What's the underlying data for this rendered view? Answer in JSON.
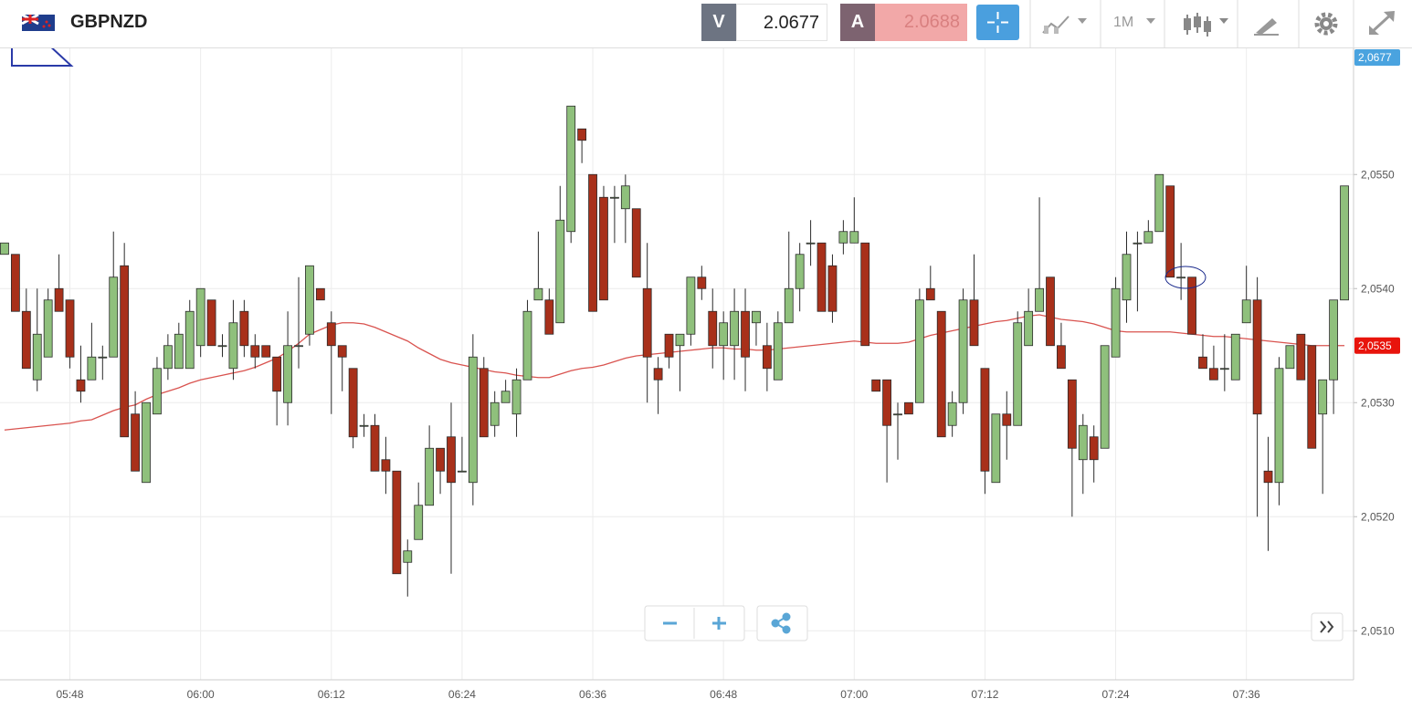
{
  "toolbar": {
    "symbol": "GBPNZD",
    "bid_label": "V",
    "bid": 2.0677,
    "ask_label": "A",
    "ask": 2.0688,
    "timeframe": "1M"
  },
  "chart_data": {
    "type": "candlestick",
    "categories": [
      null,
      null,
      null,
      null,
      null,
      null,
      "05:48",
      null,
      null,
      null,
      null,
      null,
      null,
      null,
      null,
      null,
      null,
      null,
      "06:00",
      null,
      null,
      null,
      null,
      null,
      null,
      null,
      null,
      null,
      null,
      null,
      "06:12",
      null,
      null,
      null,
      null,
      null,
      null,
      null,
      null,
      null,
      null,
      null,
      "06:24",
      null,
      null,
      null,
      null,
      null,
      null,
      null,
      null,
      null,
      null,
      null,
      "06:36",
      null,
      null,
      null,
      null,
      null,
      null,
      null,
      null,
      null,
      null,
      null,
      "06:48",
      null,
      null,
      null,
      null,
      null,
      null,
      null,
      null,
      null,
      null,
      null,
      "07:00",
      null,
      null,
      null,
      null,
      null,
      null,
      null,
      null,
      null,
      null,
      null,
      "07:12",
      null,
      null,
      null,
      null,
      null,
      null,
      null,
      null,
      null,
      null,
      null,
      "07:24",
      null,
      null,
      null,
      null,
      null,
      null,
      null,
      null,
      null,
      null,
      null,
      "07:36",
      null,
      null,
      null,
      null,
      null,
      null,
      null,
      null,
      null
    ],
    "open": [
      2.0543,
      2.0543,
      2.0538,
      2.0532,
      2.0534,
      2.054,
      2.0539,
      2.0532,
      2.0532,
      2.0534,
      2.0534,
      2.0542,
      2.0529,
      2.0523,
      2.0529,
      2.0533,
      2.0533,
      2.0533,
      2.0535,
      2.0539,
      2.0535,
      2.0533,
      2.0538,
      2.0535,
      2.0535,
      2.0534,
      2.053,
      2.0535,
      2.0536,
      2.054,
      2.0537,
      2.0535,
      2.0533,
      2.0528,
      2.0528,
      2.0525,
      2.0524,
      2.0516,
      2.0518,
      2.0521,
      2.0526,
      2.0527,
      2.0524,
      2.0523,
      2.0533,
      2.0528,
      2.053,
      2.0529,
      2.0532,
      2.0539,
      2.0539,
      2.0537,
      2.0545,
      2.0554,
      2.055,
      2.0548,
      2.0548,
      2.0547,
      2.0547,
      2.054,
      2.0533,
      2.0536,
      2.0535,
      2.0536,
      2.0541,
      2.0538,
      2.0535,
      2.0535,
      2.0538,
      2.0537,
      2.0535,
      2.0532,
      2.0537,
      2.054,
      2.0544,
      2.0544,
      2.0542,
      2.0544,
      2.0544,
      2.0544,
      2.0532,
      2.0532,
      2.0529,
      2.053,
      2.053,
      2.054,
      2.0538,
      2.0528,
      2.053,
      2.0539,
      2.0533,
      2.0523,
      2.0529,
      2.0528,
      2.0535,
      2.0538,
      2.0541,
      2.0535,
      2.0532,
      2.0525,
      2.0527,
      2.0526,
      2.0534,
      2.0539,
      2.0544,
      2.0544,
      2.0545,
      2.0549,
      2.0541,
      2.0541,
      2.0534,
      2.0533,
      2.0533,
      2.0532,
      2.0537,
      2.0539,
      2.0524,
      2.0523,
      2.0533,
      2.0536,
      2.0535,
      2.0529,
      2.0532,
      2.0539
    ],
    "high": [
      2.0544,
      2.0543,
      2.054,
      2.054,
      2.054,
      2.0543,
      2.0539,
      2.0535,
      2.0537,
      2.0535,
      2.0545,
      2.0544,
      2.0531,
      2.053,
      2.0534,
      2.0536,
      2.0537,
      2.0539,
      2.054,
      2.0539,
      2.0536,
      2.0539,
      2.0539,
      2.0536,
      2.0535,
      2.0534,
      2.0538,
      2.0541,
      2.0542,
      2.054,
      2.0538,
      2.0535,
      2.0533,
      2.0529,
      2.0529,
      2.0527,
      2.0524,
      2.0518,
      2.0523,
      2.0528,
      2.0526,
      2.053,
      2.0527,
      2.0536,
      2.0534,
      2.0531,
      2.0532,
      2.0533,
      2.0539,
      2.0545,
      2.054,
      2.0549,
      2.0556,
      2.0554,
      2.055,
      2.0549,
      2.0549,
      2.055,
      2.0547,
      2.0544,
      2.0534,
      2.0536,
      2.0536,
      2.0541,
      2.0542,
      2.054,
      2.0538,
      2.054,
      2.054,
      2.0538,
      2.0537,
      2.0538,
      2.0545,
      2.0544,
      2.0546,
      2.0544,
      2.0543,
      2.0546,
      2.0548,
      2.0544,
      2.0532,
      2.0532,
      2.053,
      2.053,
      2.054,
      2.0542,
      2.0538,
      2.0531,
      2.054,
      2.0543,
      2.0533,
      2.0529,
      2.0531,
      2.0538,
      2.054,
      2.0548,
      2.0541,
      2.0537,
      2.0532,
      2.0529,
      2.0528,
      2.0535,
      2.0541,
      2.0545,
      2.0545,
      2.0546,
      2.055,
      2.0549,
      2.0544,
      2.0541,
      2.0536,
      2.0535,
      2.0536,
      2.0536,
      2.0542,
      2.0541,
      2.0527,
      2.0534,
      2.0535,
      2.0536,
      2.0535,
      2.0532,
      2.0539,
      2.0549
    ],
    "low": [
      2.0543,
      2.0538,
      2.0533,
      2.0531,
      2.0534,
      2.0538,
      2.0533,
      2.053,
      2.0532,
      2.0532,
      2.0534,
      2.0527,
      2.0524,
      2.0523,
      2.0529,
      2.0532,
      2.0533,
      2.0533,
      2.0534,
      2.0535,
      2.0534,
      2.0532,
      2.0534,
      2.0533,
      2.0534,
      2.0528,
      2.0528,
      2.0533,
      2.0535,
      2.0539,
      2.0529,
      2.0531,
      2.0526,
      2.0527,
      2.0524,
      2.0522,
      2.0515,
      2.0513,
      2.0518,
      2.0521,
      2.0522,
      2.0515,
      2.0524,
      2.0521,
      2.0527,
      2.0527,
      2.053,
      2.0527,
      2.0532,
      2.0539,
      2.0536,
      2.0537,
      2.0544,
      2.0551,
      2.0538,
      2.0539,
      2.0544,
      2.0544,
      2.0541,
      2.053,
      2.0529,
      2.0533,
      2.0531,
      2.0535,
      2.0539,
      2.0533,
      2.0532,
      2.0532,
      2.0531,
      2.0535,
      2.0531,
      2.0532,
      2.0537,
      2.0538,
      2.0542,
      2.0538,
      2.0537,
      2.0543,
      2.0544,
      2.0535,
      2.0531,
      2.0523,
      2.0525,
      2.0529,
      2.053,
      2.0539,
      2.0527,
      2.0527,
      2.0529,
      2.0535,
      2.0522,
      2.0523,
      2.0525,
      2.0528,
      2.0535,
      2.0538,
      2.0535,
      2.0533,
      2.052,
      2.0522,
      2.0523,
      2.0526,
      2.0534,
      2.0537,
      2.0538,
      2.0544,
      2.0545,
      2.0541,
      2.0539,
      2.0536,
      2.0533,
      2.0532,
      2.0531,
      2.0532,
      2.0537,
      2.052,
      2.0517,
      2.0521,
      2.0533,
      2.0532,
      2.0526,
      2.0522,
      2.0529,
      2.0539
    ],
    "close": [
      2.0544,
      2.0538,
      2.0533,
      2.0536,
      2.0539,
      2.0538,
      2.0534,
      2.0531,
      2.0534,
      2.0534,
      2.0541,
      2.0527,
      2.0524,
      2.053,
      2.0533,
      2.0535,
      2.0536,
      2.0538,
      2.054,
      2.0535,
      2.0535,
      2.0537,
      2.0535,
      2.0534,
      2.0534,
      2.0531,
      2.0535,
      2.0535,
      2.0542,
      2.0539,
      2.0535,
      2.0534,
      2.0527,
      2.0528,
      2.0524,
      2.0524,
      2.0515,
      2.0517,
      2.0521,
      2.0526,
      2.0524,
      2.0523,
      2.0524,
      2.0534,
      2.0527,
      2.053,
      2.0531,
      2.0532,
      2.0538,
      2.054,
      2.0536,
      2.0546,
      2.0556,
      2.0553,
      2.0538,
      2.0539,
      2.0548,
      2.0549,
      2.0541,
      2.0534,
      2.0532,
      2.0534,
      2.0536,
      2.0541,
      2.054,
      2.0535,
      2.0537,
      2.0538,
      2.0534,
      2.0538,
      2.0533,
      2.0537,
      2.054,
      2.0543,
      2.0544,
      2.0538,
      2.0538,
      2.0545,
      2.0545,
      2.0535,
      2.0531,
      2.0528,
      2.0529,
      2.0529,
      2.0539,
      2.0539,
      2.0527,
      2.053,
      2.0539,
      2.0535,
      2.0524,
      2.0529,
      2.0528,
      2.0537,
      2.0538,
      2.054,
      2.0535,
      2.0533,
      2.0526,
      2.0528,
      2.0525,
      2.0535,
      2.054,
      2.0543,
      2.0544,
      2.0545,
      2.055,
      2.0541,
      2.0541,
      2.0536,
      2.0533,
      2.0532,
      2.0533,
      2.0536,
      2.0539,
      2.0529,
      2.0523,
      2.0533,
      2.0535,
      2.0532,
      2.0526,
      2.0532,
      2.0539,
      2.0549
    ],
    "up_color": "#8fc07c",
    "down_color": "#a8301a",
    "border_color": "#2b2b2b",
    "overlay": {
      "color": "#d9534f",
      "values": [
        2.05276,
        2.05277,
        2.05278,
        2.05279,
        2.0528,
        2.05281,
        2.05282,
        2.05284,
        2.05285,
        2.05289,
        2.05293,
        2.05296,
        2.05298,
        2.05303,
        2.05307,
        2.0531,
        2.05313,
        2.05317,
        2.0532,
        2.05322,
        2.05324,
        2.05326,
        2.05328,
        2.05331,
        2.05335,
        2.05339,
        2.05345,
        2.05352,
        2.0536,
        2.05364,
        2.05368,
        2.0537,
        2.0537,
        2.05369,
        2.05366,
        2.05362,
        2.05358,
        2.05354,
        2.05348,
        2.05343,
        2.05338,
        2.05335,
        2.05333,
        2.05331,
        2.05329,
        2.05327,
        2.05326,
        2.05324,
        2.05323,
        2.05322,
        2.05322,
        2.05325,
        2.05328,
        2.0533,
        2.05331,
        2.05333,
        2.05336,
        2.05339,
        2.05341,
        2.05342,
        2.05343,
        2.05344,
        2.05345,
        2.05346,
        2.05347,
        2.05348,
        2.05348,
        2.05347,
        2.05347,
        2.05346,
        2.05346,
        2.05347,
        2.05348,
        2.05349,
        2.0535,
        2.05351,
        2.05352,
        2.05353,
        2.05354,
        2.05353,
        2.05352,
        2.05352,
        2.05352,
        2.05353,
        2.05356,
        2.05359,
        2.05361,
        2.05363,
        2.05365,
        2.05367,
        2.05369,
        2.05371,
        2.05372,
        2.05374,
        2.05376,
        2.05377,
        2.05375,
        2.05373,
        2.05372,
        2.05371,
        2.05369,
        2.05366,
        2.05363,
        2.05362,
        2.05362,
        2.05362,
        2.05362,
        2.05362,
        2.05361,
        2.0536,
        2.05359,
        2.05358,
        2.05358,
        2.05357,
        2.05356,
        2.05355,
        2.05354,
        2.05353,
        2.05352,
        2.05351,
        2.0535,
        2.0535,
        2.0535,
        2.0535
      ]
    },
    "ylim": [
      2.05057,
      2.05609
    ],
    "yticks": [
      {
        "value": 2.051,
        "label": "2,0510"
      },
      {
        "value": 2.052,
        "label": "2,0520"
      },
      {
        "value": 2.053,
        "label": "2,0530"
      },
      {
        "value": 2.054,
        "label": "2,0540"
      },
      {
        "value": 2.055,
        "label": "2,0550"
      }
    ],
    "grid": true,
    "price_labels": [
      {
        "value": 2.0677,
        "label": "2,0677",
        "color": "#4aa3df"
      },
      {
        "value": 2.0535,
        "label": "2,0535",
        "color": "#e8140c"
      }
    ]
  }
}
